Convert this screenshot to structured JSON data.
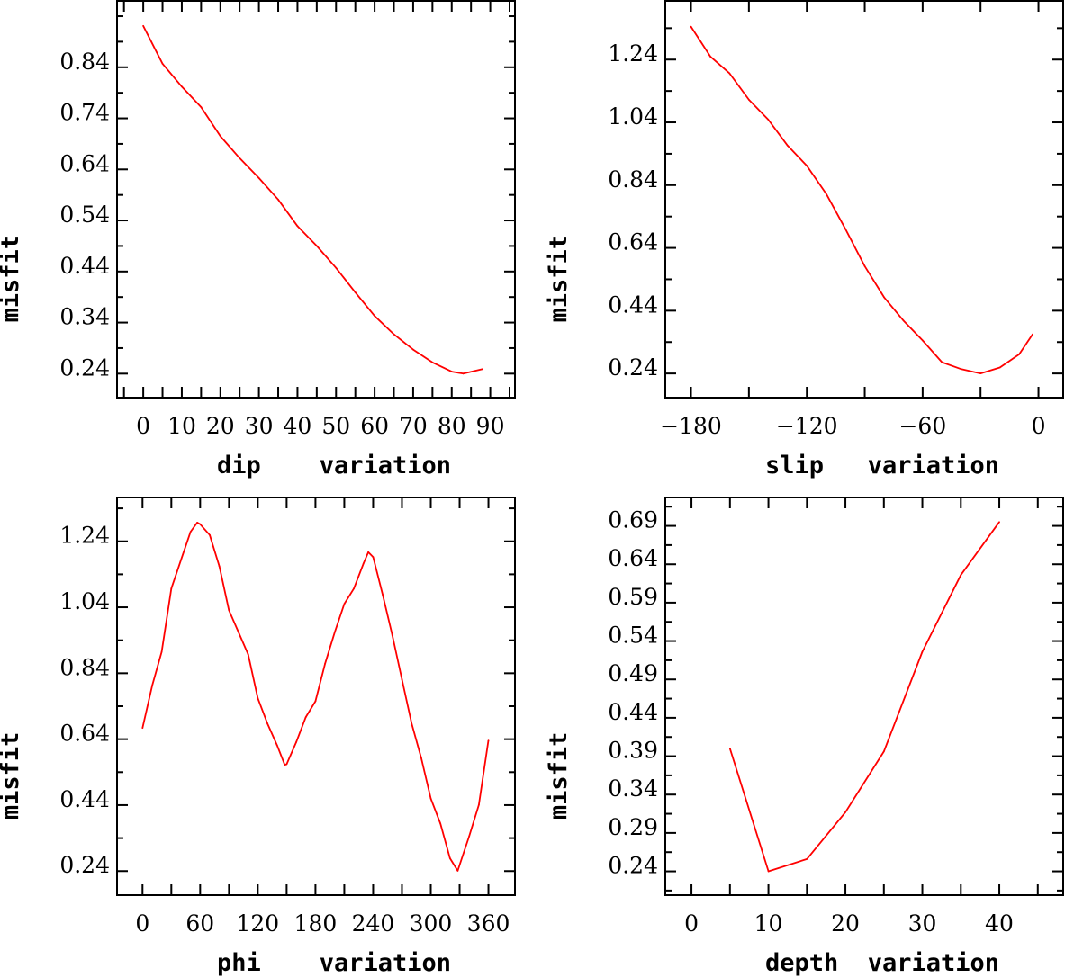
{
  "chart_data": [
    {
      "type": "line",
      "title": "",
      "xlabel": "dip    variation",
      "ylabel": "misfit",
      "xlim": [
        -6.8,
        96.4
      ],
      "ylim": [
        0.193,
        0.97
      ],
      "xticks": [
        0,
        10,
        20,
        30,
        40,
        50,
        60,
        70,
        80,
        90
      ],
      "xtick_labels": [
        "0",
        "10",
        "20",
        "30",
        "40",
        "50",
        "60",
        "70",
        "80",
        "90"
      ],
      "x_minor_step": 5,
      "yticks": [
        0.24,
        0.34,
        0.44,
        0.54,
        0.64,
        0.74,
        0.84
      ],
      "ytick_labels": [
        "0.24",
        "0.34",
        "0.44",
        "0.54",
        "0.64",
        "0.74",
        "0.84"
      ],
      "y_minor_step": 0.05,
      "grid": false,
      "color": "#ff0000",
      "x": [
        0,
        5,
        10,
        15,
        20,
        25,
        30,
        35,
        40,
        45,
        50,
        55,
        60,
        65,
        70,
        75,
        80,
        83,
        88
      ],
      "y": [
        0.921,
        0.847,
        0.802,
        0.762,
        0.705,
        0.662,
        0.623,
        0.581,
        0.529,
        0.49,
        0.447,
        0.399,
        0.353,
        0.317,
        0.287,
        0.262,
        0.244,
        0.24,
        0.249
      ]
    },
    {
      "type": "line",
      "title": "",
      "xlabel": "slip   variation",
      "ylabel": "misfit",
      "xlim": [
        -193.3,
        12.8
      ],
      "ylim": [
        0.163,
        1.427
      ],
      "xticks": [
        -180,
        -120,
        -60,
        0
      ],
      "xtick_labels": [
        "−180",
        "−120",
        "−60",
        "0"
      ],
      "x_minor_step": 30,
      "yticks": [
        0.24,
        0.44,
        0.64,
        0.84,
        1.04,
        1.24
      ],
      "ytick_labels": [
        "0.24",
        "0.44",
        "0.64",
        "0.84",
        "1.04",
        "1.24"
      ],
      "y_minor_step": 0.1,
      "grid": false,
      "color": "#ff0000",
      "x": [
        -180,
        -170,
        -160,
        -150,
        -140,
        -130,
        -120,
        -110,
        -100,
        -90,
        -80,
        -70,
        -60,
        -50,
        -40,
        -30,
        -20,
        -10,
        -3
      ],
      "y": [
        1.345,
        1.25,
        1.196,
        1.112,
        1.049,
        0.966,
        0.902,
        0.813,
        0.7,
        0.582,
        0.483,
        0.409,
        0.345,
        0.276,
        0.254,
        0.24,
        0.259,
        0.301,
        0.365
      ]
    },
    {
      "type": "line",
      "title": "",
      "xlabel": "phi    variation",
      "ylabel": "misfit",
      "xlim": [
        -26.5,
        387.6
      ],
      "ylim": [
        0.167,
        1.373
      ],
      "xticks": [
        0,
        60,
        120,
        180,
        240,
        300,
        360
      ],
      "xtick_labels": [
        "0",
        "60",
        "120",
        "180",
        "240",
        "300",
        "360"
      ],
      "x_minor_step": 30,
      "yticks": [
        0.24,
        0.44,
        0.64,
        0.84,
        1.04,
        1.24
      ],
      "ytick_labels": [
        "0.24",
        "0.44",
        "0.64",
        "0.84",
        "1.04",
        "1.24"
      ],
      "y_minor_step": 0.1,
      "grid": false,
      "color": "#ff0000",
      "x": [
        0,
        10,
        20,
        30,
        40,
        50,
        57,
        60,
        70,
        80,
        90,
        100,
        110,
        120,
        130,
        140,
        148,
        150,
        160,
        170,
        180,
        190,
        200,
        210,
        220,
        230,
        235,
        240,
        250,
        260,
        270,
        280,
        290,
        300,
        310,
        320,
        328,
        340,
        350,
        360
      ],
      "y": [
        0.674,
        0.802,
        0.905,
        1.097,
        1.183,
        1.269,
        1.297,
        1.292,
        1.259,
        1.164,
        1.031,
        0.964,
        0.897,
        0.764,
        0.688,
        0.622,
        0.562,
        0.564,
        0.631,
        0.707,
        0.755,
        0.869,
        0.964,
        1.05,
        1.097,
        1.173,
        1.207,
        1.192,
        1.078,
        0.955,
        0.821,
        0.688,
        0.584,
        0.46,
        0.384,
        0.279,
        0.241,
        0.346,
        0.441,
        0.636
      ]
    },
    {
      "type": "line",
      "title": "",
      "xlabel": "depth  variation",
      "ylabel": "misfit",
      "xlim": [
        -3.4,
        48.3
      ],
      "ylim": [
        0.209,
        0.727
      ],
      "xticks": [
        0,
        10,
        20,
        30,
        40
      ],
      "xtick_labels": [
        "0",
        "10",
        "20",
        "30",
        "40"
      ],
      "x_minor_step": 5,
      "yticks": [
        0.24,
        0.29,
        0.34,
        0.39,
        0.44,
        0.49,
        0.54,
        0.59,
        0.64,
        0.69
      ],
      "ytick_labels": [
        "0.24",
        "0.29",
        "0.34",
        "0.39",
        "0.44",
        "0.49",
        "0.54",
        "0.59",
        "0.64",
        "0.69"
      ],
      "y_minor_step": 0.025,
      "grid": false,
      "color": "#ff0000",
      "x": [
        5,
        10,
        15,
        20,
        25,
        30,
        35,
        40
      ],
      "y": [
        0.4,
        0.24,
        0.256,
        0.317,
        0.396,
        0.526,
        0.626,
        0.695
      ]
    }
  ]
}
